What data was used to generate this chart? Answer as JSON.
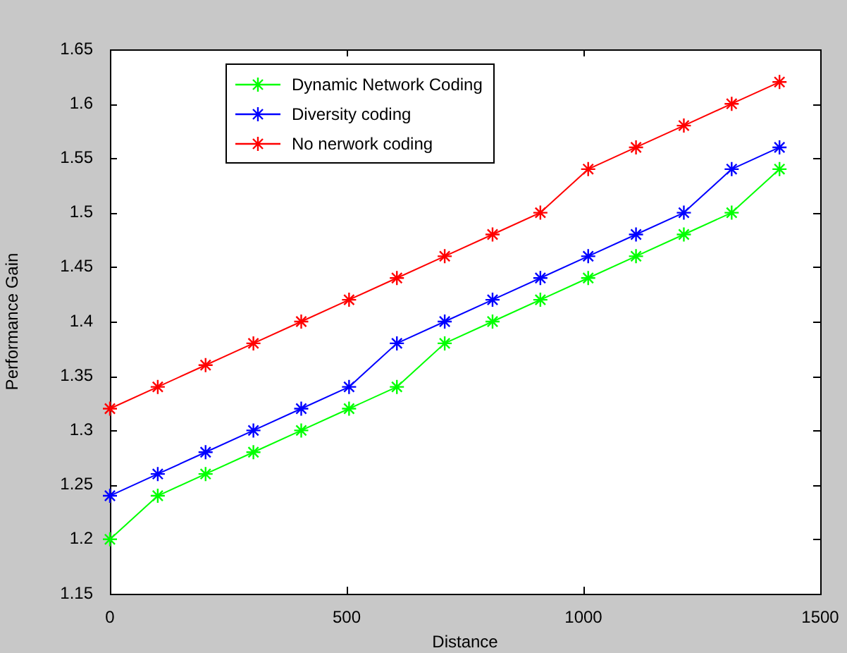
{
  "chart_data": {
    "type": "line",
    "xlabel": "Distance",
    "ylabel": "Performance Gain",
    "x": [
      0,
      101,
      202,
      303,
      404,
      505,
      606,
      707,
      808,
      909,
      1010,
      1111,
      1212,
      1313,
      1414
    ],
    "series": [
      {
        "name": "Dynamic Network Coding",
        "color": "#00ff00",
        "values": [
          1.2,
          1.24,
          1.26,
          1.28,
          1.3,
          1.32,
          1.34,
          1.38,
          1.4,
          1.42,
          1.44,
          1.46,
          1.48,
          1.5,
          1.54
        ]
      },
      {
        "name": "Diversity coding",
        "color": "#0000ff",
        "values": [
          1.24,
          1.26,
          1.28,
          1.3,
          1.32,
          1.34,
          1.38,
          1.4,
          1.42,
          1.44,
          1.46,
          1.48,
          1.5,
          1.54,
          1.56
        ]
      },
      {
        "name": "No nerwork coding",
        "color": "#ff0000",
        "values": [
          1.32,
          1.34,
          1.36,
          1.38,
          1.4,
          1.42,
          1.44,
          1.46,
          1.48,
          1.5,
          1.54,
          1.56,
          1.58,
          1.6,
          1.62
        ]
      }
    ],
    "xlim": [
      0,
      1500
    ],
    "xticks": [
      0,
      500,
      1000,
      1500
    ],
    "ylim": [
      1.15,
      1.65
    ],
    "yticks": [
      1.15,
      1.2,
      1.25,
      1.3,
      1.35,
      1.4,
      1.45,
      1.5,
      1.55,
      1.6,
      1.65
    ],
    "grid": false,
    "legend": "top left",
    "marker": "cross",
    "line_style": "solid"
  }
}
